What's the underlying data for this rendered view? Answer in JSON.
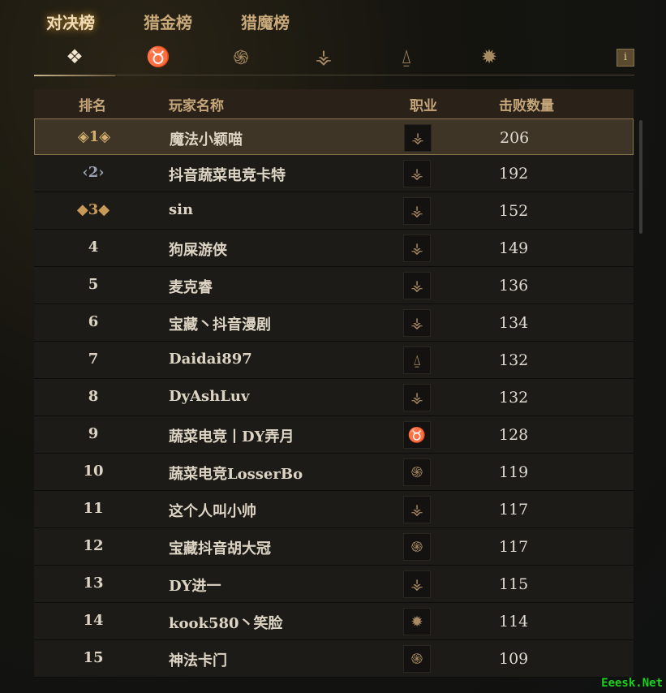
{
  "tabs": [
    {
      "label": "对决榜",
      "active": true
    },
    {
      "label": "猎金榜"
    },
    {
      "label": "猎魔榜"
    }
  ],
  "class_filters": [
    "all-icon",
    "bull-icon",
    "triskelion-icon",
    "bow-icon",
    "hood-icon",
    "sun-icon"
  ],
  "info_label": "i",
  "headers": {
    "rank": "排名",
    "name": "玩家名称",
    "class": "职业",
    "kills": "击败数量"
  },
  "rows": [
    {
      "rank": "1",
      "name": "魔法小颖喵",
      "class": "bow",
      "kills": "206"
    },
    {
      "rank": "2",
      "name": "抖音蔬菜电竞卡特",
      "class": "bow",
      "kills": "192"
    },
    {
      "rank": "3",
      "name": "sin",
      "class": "bow",
      "kills": "152"
    },
    {
      "rank": "4",
      "name": "狗屎游侠",
      "class": "bow",
      "kills": "149"
    },
    {
      "rank": "5",
      "name": "麦克睿",
      "class": "bow",
      "kills": "136"
    },
    {
      "rank": "6",
      "name": "宝藏丶抖音漫剧",
      "class": "bow",
      "kills": "134"
    },
    {
      "rank": "7",
      "name": "Daidai897",
      "class": "hood",
      "kills": "132"
    },
    {
      "rank": "8",
      "name": "DyAshLuv",
      "class": "bow",
      "kills": "132"
    },
    {
      "rank": "9",
      "name": "蔬菜电竞丨DY弄月",
      "class": "bull",
      "kills": "128"
    },
    {
      "rank": "10",
      "name": "蔬菜电竞LosserBo",
      "class": "triskelion",
      "kills": "119"
    },
    {
      "rank": "11",
      "name": "这个人叫小帅",
      "class": "bow",
      "kills": "117"
    },
    {
      "rank": "12",
      "name": "宝藏抖音胡大冠",
      "class": "triskelion",
      "kills": "117"
    },
    {
      "rank": "13",
      "name": "DY进一",
      "class": "bow",
      "kills": "115"
    },
    {
      "rank": "14",
      "name": "kook580丶笑脸",
      "class": "sun",
      "kills": "114"
    },
    {
      "rank": "15",
      "name": "神法卡门",
      "class": "triskelion",
      "kills": "109"
    }
  ],
  "watermark": "Eeesk.Net"
}
